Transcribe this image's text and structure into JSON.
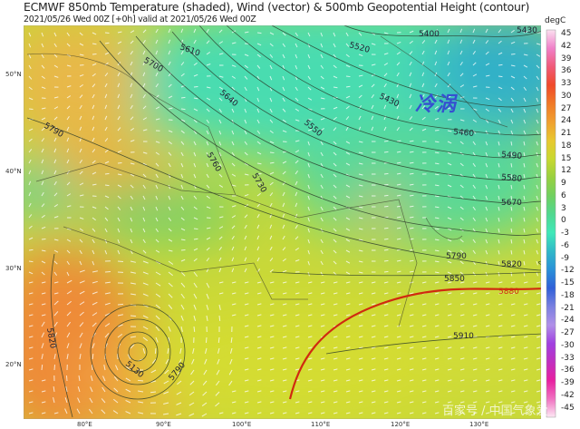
{
  "header": {
    "title": "ECMWF 850mb Temperature (shaded), Wind (vector) & 500mb Geopotential Height (contour)",
    "subtitle": "2021/05/26 Wed 00Z [+0h] valid at 2021/05/26 Wed 00Z"
  },
  "colorbar": {
    "unit": "degC",
    "ticks": [
      "45",
      "42",
      "39",
      "36",
      "33",
      "30",
      "27",
      "24",
      "21",
      "18",
      "15",
      "12",
      "9",
      "6",
      "3",
      "0",
      "-3",
      "-6",
      "-9",
      "-12",
      "-15",
      "-18",
      "-21",
      "-24",
      "-27",
      "-30",
      "-33",
      "-36",
      "-39",
      "-42",
      "-45"
    ],
    "colors": [
      "#fbe0f0",
      "#f080c8",
      "#f05a78",
      "#f04a2a",
      "#f07a28",
      "#f0a030",
      "#e8c830",
      "#c8d830",
      "#98d040",
      "#70d060",
      "#50d890",
      "#40e8b8",
      "#30b8c8",
      "#2a90d8",
      "#3060d8",
      "#7a80e0",
      "#b090e8",
      "#a040e0",
      "#c030c0",
      "#e820a0",
      "#f070c0",
      "#fde8f4"
    ]
  },
  "axes": {
    "lat_labels": [
      "50°N",
      "40°N",
      "30°N",
      "20°N"
    ],
    "lon_labels": [
      "80°E",
      "90°E",
      "100°E",
      "110°E",
      "120°E",
      "130°E"
    ]
  },
  "contour_labels": [
    "5400",
    "5430",
    "5430",
    "5460",
    "5490",
    "5520",
    "5550",
    "5580",
    "5610",
    "5640",
    "5670",
    "5700",
    "5730",
    "5760",
    "5790",
    "5790",
    "5790",
    "5820",
    "5820",
    "5850",
    "5880",
    "5910",
    "5130"
  ],
  "highlight_contour": {
    "value": "5880",
    "color": "#d02a10"
  },
  "annotation": "冷涡",
  "watermark": "百家号 / 中国气象爱"
}
